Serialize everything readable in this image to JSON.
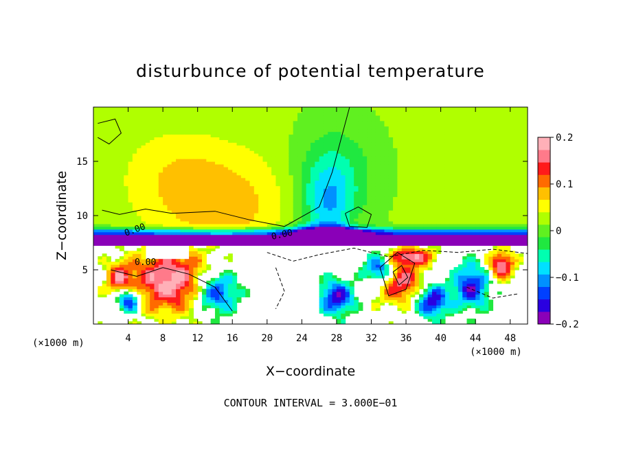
{
  "chart_data": {
    "type": "heatmap",
    "title": "disturbunce of potential temperature",
    "xlabel": "X−coordinate",
    "ylabel": "Z−coordinate",
    "x_unit_left": "(×1000 m)",
    "x_unit_right": "(×1000 m)",
    "xlim": [
      0,
      50
    ],
    "ylim": [
      0,
      20
    ],
    "x_ticks": [
      4,
      8,
      12,
      16,
      20,
      24,
      28,
      32,
      36,
      40,
      44,
      48
    ],
    "x_tick_labels": [
      "4",
      "8",
      "12",
      "16",
      "20",
      "24",
      "28",
      "32",
      "36",
      "40",
      "44",
      "48"
    ],
    "y_ticks": [
      5,
      10,
      15
    ],
    "y_tick_labels": [
      "5",
      "10",
      "15"
    ],
    "contour_label": "0.00",
    "footer": "CONTOUR INTERVAL = 3.000E−01",
    "colorbar": {
      "range": [
        -0.2,
        0.2
      ],
      "ticks": [
        0.2,
        0.1,
        0,
        -0.1,
        -0.2
      ],
      "tick_labels": [
        "0.2",
        "0.1",
        "0",
        "−0.1",
        "−0.2"
      ],
      "colors": [
        "#8a00b8",
        "#2a00e0",
        "#0040ff",
        "#0090ff",
        "#00e0ff",
        "#00ffb0",
        "#20e840",
        "#60f020",
        "#b0ff00",
        "#ffff00",
        "#ffc000",
        "#ff6a00",
        "#ff1a1a",
        "#ff7a8a",
        "#ffb0b8"
      ]
    },
    "field": {
      "upper_layer_mean": 0.02,
      "upper_warm_anomaly": 0.06,
      "upper_cool_anomaly": -0.09,
      "inversion_height": 7.7,
      "inversion_value": -0.18,
      "lower_layer_range": [
        -0.2,
        0.2
      ]
    }
  }
}
